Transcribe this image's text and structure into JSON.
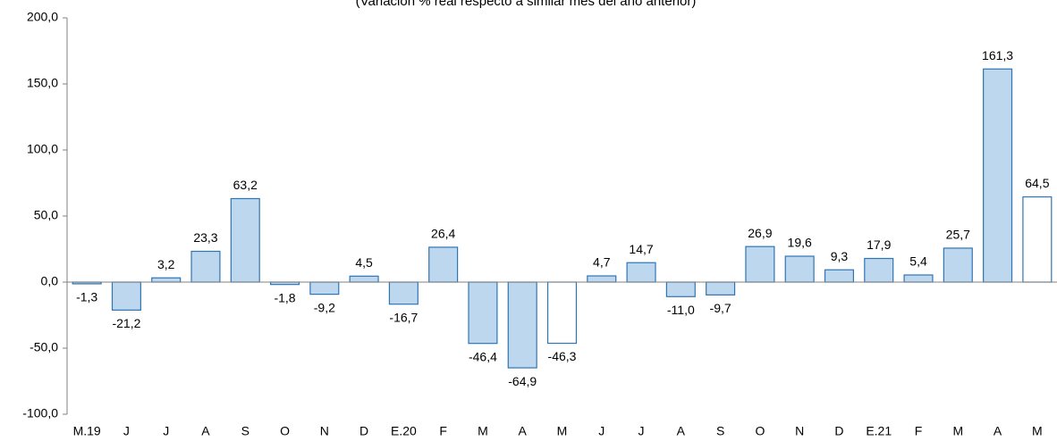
{
  "chart_data": {
    "type": "bar",
    "subtitle": "(Variación  % real respecto a similar mes del año anterior)",
    "categories": [
      "M.19",
      "J",
      "J",
      "A",
      "S",
      "O",
      "N",
      "D",
      "E.20",
      "F",
      "M",
      "A",
      "M",
      "J",
      "J",
      "A",
      "S",
      "O",
      "N",
      "D",
      "E.21",
      "F",
      "M",
      "A",
      "M"
    ],
    "values": [
      -1.3,
      -21.2,
      3.2,
      23.3,
      63.2,
      -1.8,
      -9.2,
      4.5,
      -16.7,
      26.4,
      -46.4,
      -64.9,
      -46.3,
      4.7,
      14.7,
      -11.0,
      -9.7,
      26.9,
      19.6,
      9.3,
      17.9,
      5.4,
      25.7,
      161.3,
      64.5
    ],
    "value_labels": [
      "-1,3",
      "-21,2",
      "3,2",
      "23,3",
      "63,2",
      "-1,8",
      "-9,2",
      "4,5",
      "-16,7",
      "26,4",
      "-46,4",
      "-64,9",
      "-46,3",
      "4,7",
      "14,7",
      "-11,0",
      "-9,7",
      "26,9",
      "19,6",
      "9,3",
      "17,9",
      "5,4",
      "25,7",
      "161,3",
      "64,5"
    ],
    "colors": [
      "#bdd7ee",
      "#bdd7ee",
      "#bdd7ee",
      "#bdd7ee",
      "#bdd7ee",
      "#bdd7ee",
      "#bdd7ee",
      "#bdd7ee",
      "#bdd7ee",
      "#bdd7ee",
      "#bdd7ee",
      "#bdd7ee",
      "#ffffff",
      "#bdd7ee",
      "#bdd7ee",
      "#bdd7ee",
      "#bdd7ee",
      "#bdd7ee",
      "#bdd7ee",
      "#bdd7ee",
      "#bdd7ee",
      "#bdd7ee",
      "#bdd7ee",
      "#bdd7ee",
      "#ffffff"
    ],
    "edge_color": "#2e75b6",
    "ylim": [
      -100,
      200
    ],
    "yticks": [
      {
        "value": -100,
        "label": "-100,0"
      },
      {
        "value": -50,
        "label": "-50,0"
      },
      {
        "value": 0,
        "label": "0,0"
      },
      {
        "value": 50,
        "label": "50,0"
      },
      {
        "value": 100,
        "label": "100,0"
      },
      {
        "value": 150,
        "label": "150,0"
      },
      {
        "value": 200,
        "label": "200,0"
      }
    ],
    "grid": false
  }
}
